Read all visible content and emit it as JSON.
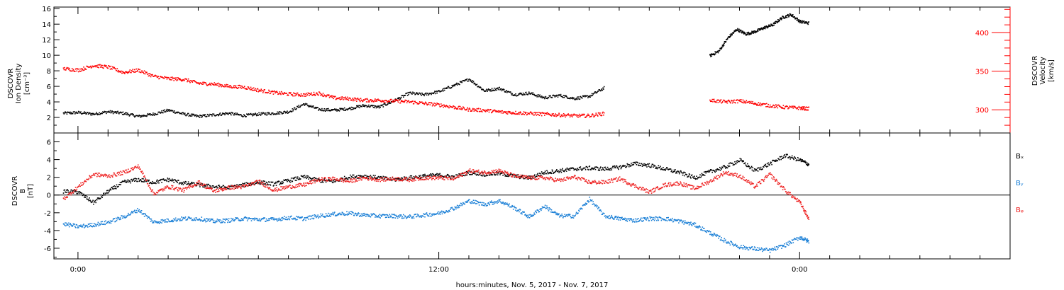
{
  "chart_data": [
    {
      "type": "scatter",
      "panel": "top",
      "y_left_label_lines": [
        "DSCOVR",
        "Ion Density",
        "[cm⁻³]"
      ],
      "y_right_label_lines": [
        "DSCOVR",
        "Velocity",
        "[km/s]"
      ],
      "ylim_left": [
        0,
        16.2
      ],
      "ylim_right": [
        270,
        433
      ],
      "y_left_ticks": [
        "2",
        "4",
        "6",
        "8",
        "10",
        "12",
        "14",
        "16"
      ],
      "y_right_ticks": [
        "300",
        "350",
        "400"
      ],
      "colors": {
        "density": "#000000",
        "velocity": "#ff0000"
      },
      "series": [
        {
          "side": "left",
          "x_hours": [
            -0.5,
            0.0,
            0.5,
            1.0,
            1.5,
            2.0,
            2.5,
            3.0,
            3.5,
            4.0,
            4.5,
            5.0,
            5.5,
            6.0,
            6.5,
            7.0,
            7.5,
            8.0,
            8.5,
            9.0,
            9.5,
            10.0,
            10.5,
            11.0,
            11.5,
            12.0,
            12.5,
            13.0,
            13.5,
            14.0,
            14.5,
            15.0,
            15.5,
            16.0,
            16.5,
            17.0,
            17.5
          ],
          "values": [
            2.6,
            2.7,
            2.5,
            2.8,
            2.6,
            2.2,
            2.5,
            3.0,
            2.5,
            2.2,
            2.4,
            2.6,
            2.3,
            2.5,
            2.6,
            2.8,
            3.8,
            3.1,
            3.0,
            3.2,
            3.6,
            3.4,
            4.2,
            5.2,
            5.0,
            5.4,
            6.2,
            7.0,
            5.5,
            5.8,
            5.0,
            5.2,
            4.6,
            4.9,
            4.5,
            4.8,
            5.9
          ]
        },
        {
          "side": "left",
          "x_hours": [
            21.0,
            21.3,
            21.6,
            21.9,
            22.2,
            22.5,
            22.8,
            23.1,
            23.4,
            23.7,
            24.0,
            24.3
          ],
          "values": [
            10.0,
            10.6,
            12.3,
            13.4,
            12.8,
            13.1,
            13.6,
            14.0,
            14.9,
            15.3,
            14.4,
            14.2
          ]
        },
        {
          "side": "right",
          "x_hours": [
            -0.5,
            0.0,
            0.5,
            1.0,
            1.5,
            2.0,
            2.5,
            3.0,
            3.5,
            4.0,
            4.5,
            5.0,
            5.5,
            6.0,
            6.5,
            7.0,
            7.5,
            8.0,
            8.5,
            9.0,
            9.5,
            10.0,
            10.5,
            11.0,
            11.5,
            12.0,
            12.5,
            13.0,
            13.5,
            14.0,
            14.5,
            15.0,
            15.5,
            16.0,
            16.5,
            17.0,
            17.5
          ],
          "values": [
            354,
            352,
            358,
            356,
            349,
            352,
            344,
            341,
            340,
            335,
            334,
            331,
            330,
            326,
            323,
            321,
            320,
            322,
            316,
            315,
            313,
            313,
            312,
            311,
            309,
            307,
            304,
            301,
            300,
            298,
            297,
            296,
            295,
            294,
            293,
            293,
            296
          ]
        },
        {
          "side": "right",
          "x_hours": [
            21.0,
            21.5,
            22.0,
            22.5,
            23.0,
            23.5,
            24.0,
            24.3
          ],
          "values": [
            313,
            311,
            312,
            309,
            306,
            304,
            303,
            302
          ]
        }
      ]
    },
    {
      "type": "scatter",
      "panel": "bottom",
      "y_label_lines": [
        "DSCOVR",
        "B",
        "[nT]"
      ],
      "ylim": [
        -7.2,
        7
      ],
      "y_ticks": [
        "-6",
        "-4",
        "-2",
        "0",
        "2",
        "4",
        "6"
      ],
      "zero_line": true,
      "series": [
        {
          "name": "Bₓ",
          "color": "#000000",
          "x_hours": [
            -0.5,
            0.0,
            0.5,
            1.0,
            1.5,
            2.0,
            2.5,
            3.0,
            3.5,
            4.0,
            4.5,
            5.0,
            5.5,
            6.0,
            6.5,
            7.0,
            7.5,
            8.0,
            8.5,
            9.0,
            9.5,
            10.0,
            10.5,
            11.0,
            11.5,
            12.0,
            12.5,
            13.0,
            13.5,
            14.0,
            14.5,
            15.0,
            15.5,
            16.0,
            16.5,
            17.0,
            17.5,
            18.0,
            18.5,
            19.0,
            19.5,
            20.0,
            20.5,
            21.0,
            21.5,
            22.0,
            22.5,
            23.0,
            23.5,
            24.0,
            24.3
          ],
          "values": [
            0.5,
            0.4,
            -0.8,
            0.5,
            1.5,
            1.8,
            1.5,
            1.8,
            1.4,
            1.2,
            1.0,
            0.9,
            1.2,
            1.5,
            1.3,
            1.7,
            2.1,
            1.7,
            1.6,
            2.1,
            2.2,
            2.0,
            1.8,
            2.0,
            2.2,
            2.3,
            2.1,
            2.6,
            2.4,
            2.5,
            2.2,
            2.0,
            2.6,
            2.8,
            3.0,
            3.1,
            3.0,
            3.2,
            3.6,
            3.4,
            3.0,
            2.6,
            2.0,
            2.7,
            3.2,
            4.0,
            2.8,
            3.6,
            4.5,
            4.0,
            3.5
          ]
        },
        {
          "name": "Bᵧ",
          "color": "#1a7fd6",
          "x_hours": [
            -0.5,
            0.0,
            0.5,
            1.0,
            1.5,
            2.0,
            2.5,
            3.0,
            3.5,
            4.0,
            4.5,
            5.0,
            5.5,
            6.0,
            6.5,
            7.0,
            7.5,
            8.0,
            8.5,
            9.0,
            9.5,
            10.0,
            10.5,
            11.0,
            11.5,
            12.0,
            12.5,
            13.0,
            13.5,
            14.0,
            14.5,
            15.0,
            15.5,
            16.0,
            16.5,
            17.0,
            17.5,
            18.0,
            18.5,
            19.0,
            19.5,
            20.0,
            20.5,
            21.0,
            21.5,
            22.0,
            22.5,
            23.0,
            23.5,
            24.0,
            24.3
          ],
          "values": [
            -3.2,
            -3.5,
            -3.3,
            -3.0,
            -2.4,
            -1.6,
            -3.0,
            -2.8,
            -2.6,
            -2.6,
            -2.9,
            -2.8,
            -2.6,
            -2.7,
            -2.7,
            -2.5,
            -2.6,
            -2.3,
            -2.1,
            -2.0,
            -2.2,
            -2.3,
            -2.3,
            -2.4,
            -2.2,
            -2.0,
            -1.4,
            -0.6,
            -1.0,
            -0.6,
            -1.4,
            -2.4,
            -1.2,
            -2.3,
            -2.3,
            -0.4,
            -2.3,
            -2.6,
            -2.8,
            -2.6,
            -2.6,
            -2.9,
            -3.3,
            -4.2,
            -5.1,
            -5.8,
            -6.0,
            -6.2,
            -5.6,
            -4.7,
            -5.2
          ]
        },
        {
          "name": "Bᵩ",
          "color": "#ee2222",
          "x_hours": [
            -0.5,
            0.0,
            0.5,
            1.0,
            1.5,
            2.0,
            2.5,
            3.0,
            3.5,
            4.0,
            4.5,
            5.0,
            5.5,
            6.0,
            6.5,
            7.0,
            7.5,
            8.0,
            8.5,
            9.0,
            9.5,
            10.0,
            10.5,
            11.0,
            11.5,
            12.0,
            12.5,
            13.0,
            13.5,
            14.0,
            14.5,
            15.0,
            15.5,
            16.0,
            16.5,
            17.0,
            17.5,
            18.0,
            18.5,
            19.0,
            19.5,
            20.0,
            20.5,
            21.0,
            21.5,
            22.0,
            22.5,
            23.0,
            23.5,
            24.0,
            24.3
          ],
          "values": [
            -0.4,
            1.0,
            2.4,
            2.2,
            2.6,
            3.3,
            0.2,
            1.0,
            0.6,
            1.5,
            0.5,
            0.9,
            1.0,
            1.6,
            0.6,
            1.0,
            1.2,
            1.8,
            1.9,
            1.6,
            2.0,
            1.8,
            1.9,
            1.8,
            2.0,
            2.0,
            1.9,
            2.8,
            2.6,
            2.8,
            2.2,
            2.0,
            2.0,
            1.7,
            2.1,
            1.5,
            1.5,
            1.9,
            1.1,
            0.4,
            1.2,
            1.4,
            0.8,
            1.6,
            2.6,
            2.2,
            1.0,
            2.4,
            0.6,
            -0.8,
            -2.7
          ]
        }
      ]
    }
  ],
  "x_axis": {
    "xlim_hours": [
      -0.8,
      31.0
    ],
    "major_labels": [
      {
        "hour": 0,
        "text": "0:00"
      },
      {
        "hour": 12,
        "text": "12:00"
      },
      {
        "hour": 24,
        "text": "0:00"
      }
    ],
    "title": "hours:minutes, Nov. 5, 2017 - Nov. 7, 2017"
  },
  "legend": [
    "Bₓ",
    "Bᵧ",
    "Bᵩ"
  ]
}
